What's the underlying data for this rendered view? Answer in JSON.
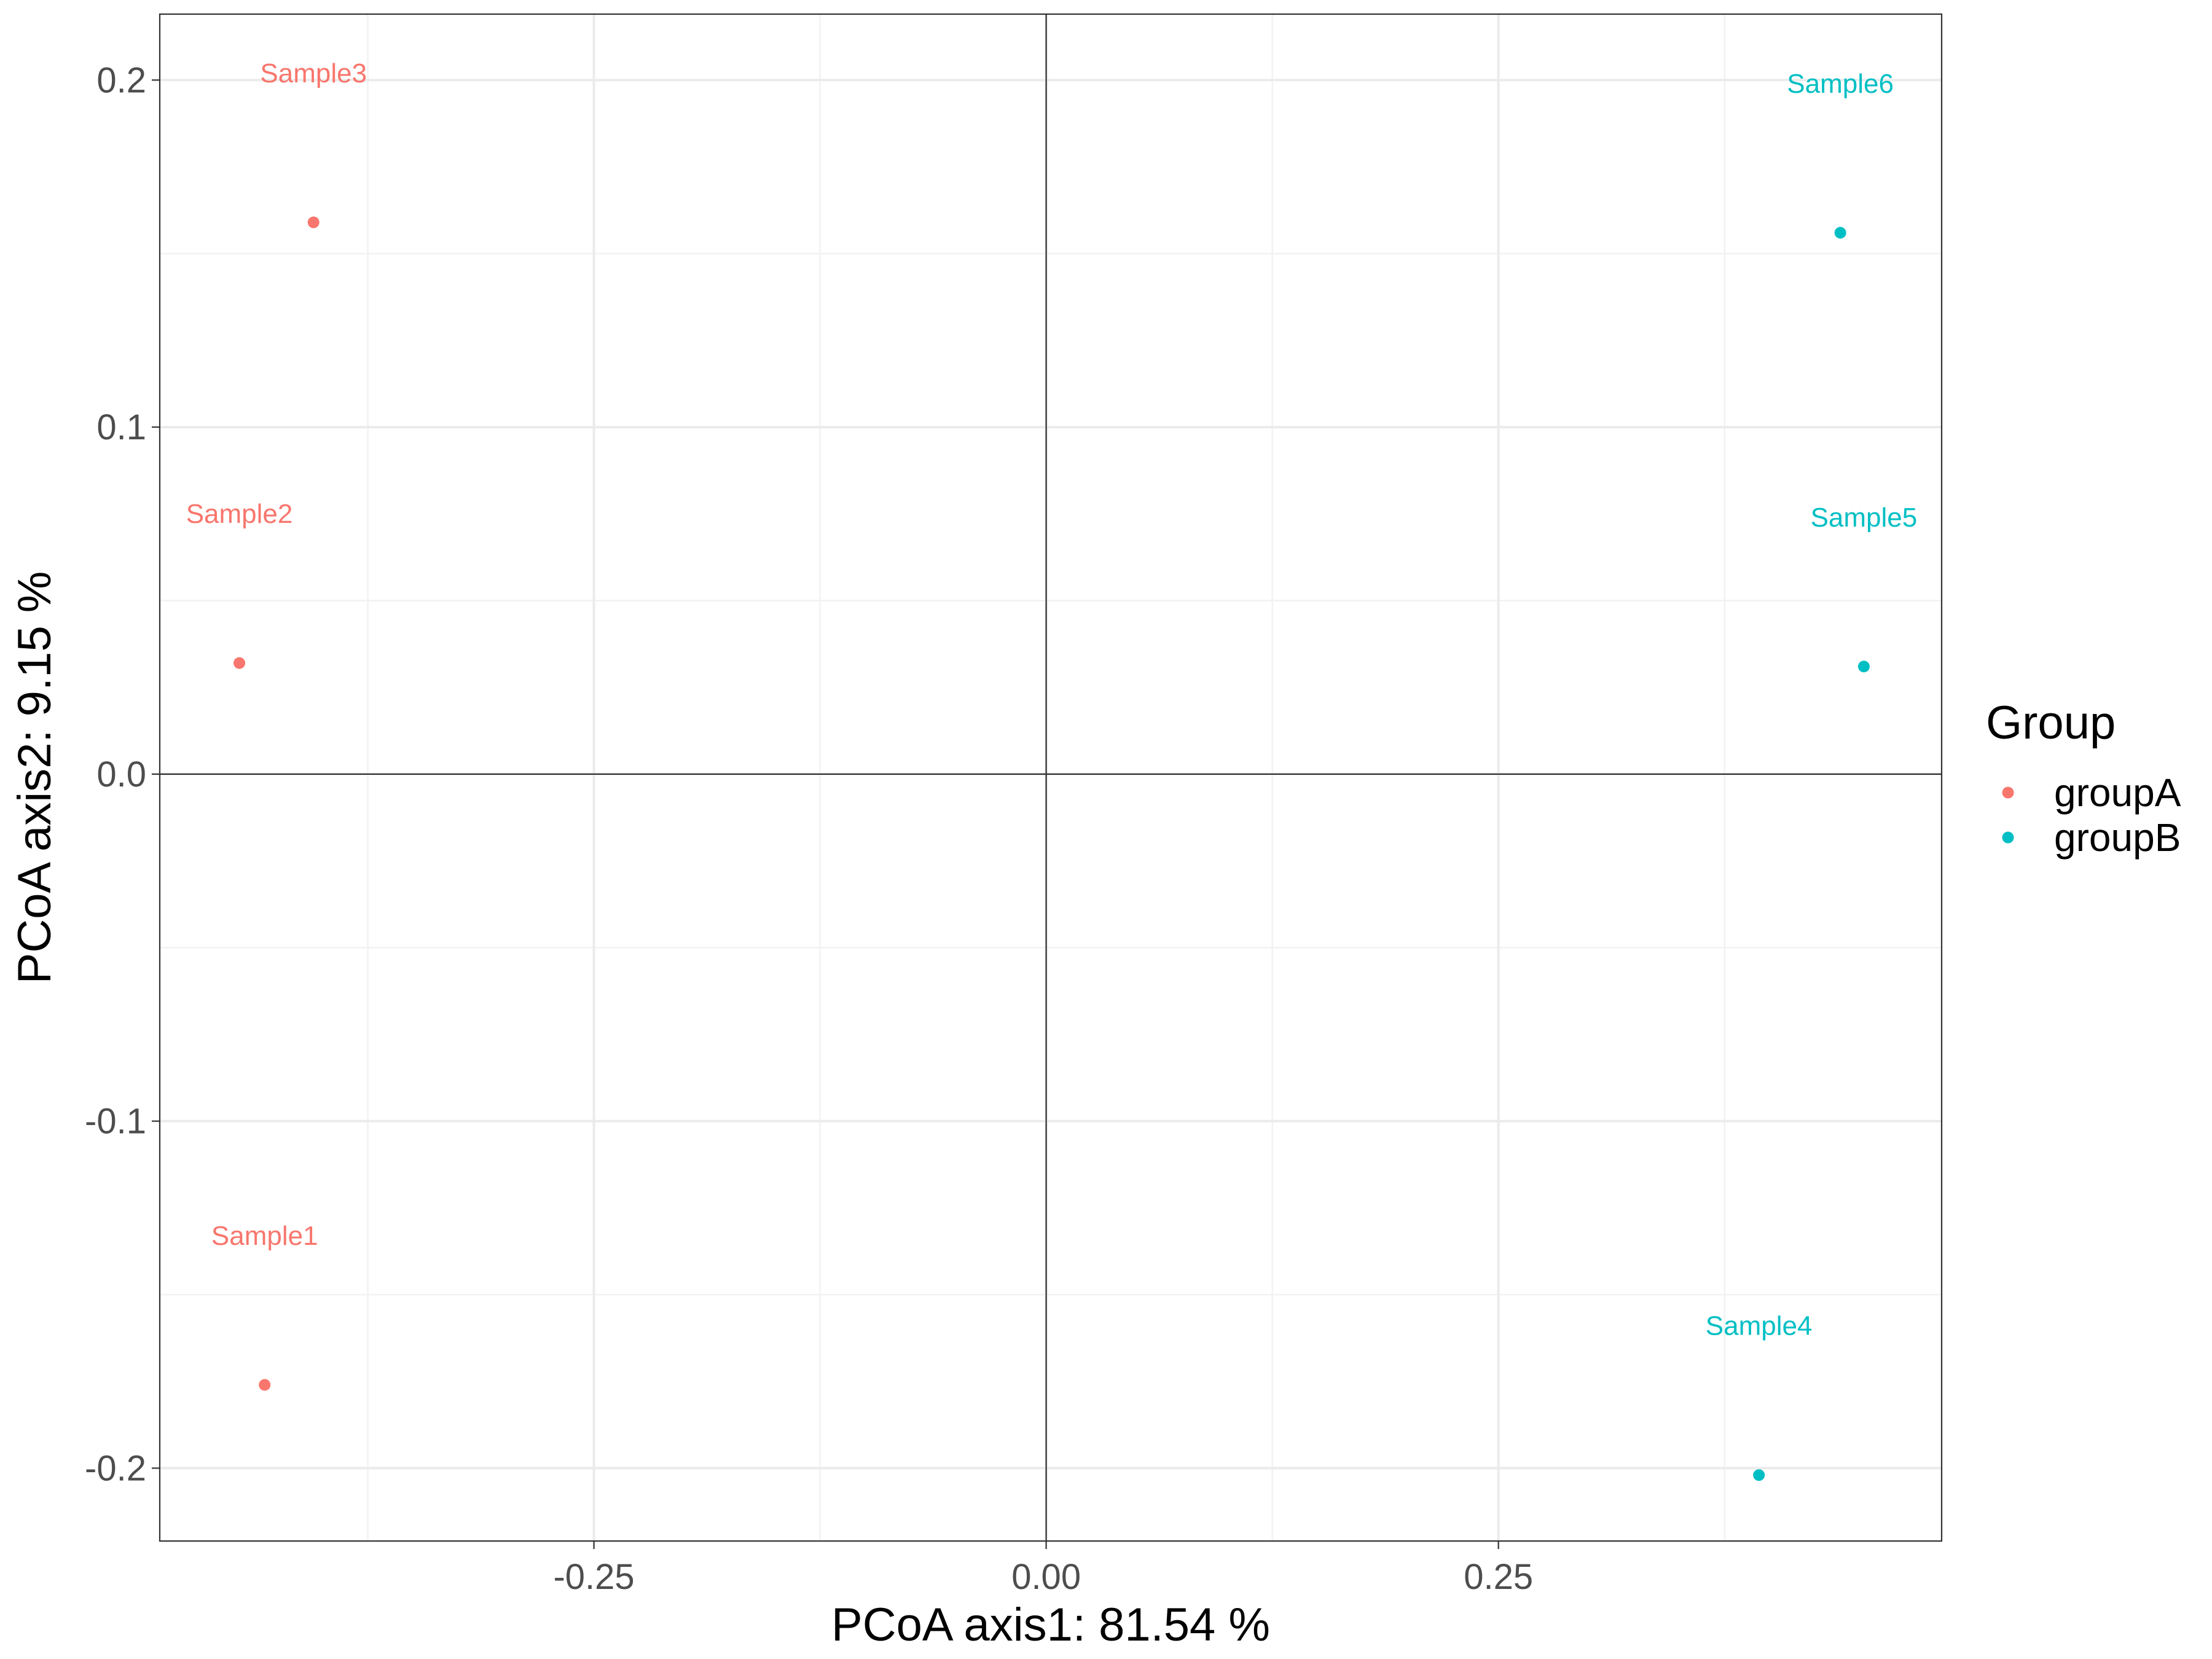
{
  "chart_data": {
    "type": "scatter",
    "xlabel": "PCoA axis1:  81.54 %",
    "ylabel": "PCoA axis2:  9.15 %",
    "xlim": [
      -0.49,
      0.495
    ],
    "ylim": [
      -0.221,
      0.219
    ],
    "x_ticks": [
      {
        "value": -0.25,
        "label": "-0.25"
      },
      {
        "value": 0.0,
        "label": "0.00"
      },
      {
        "value": 0.25,
        "label": "0.25"
      }
    ],
    "y_ticks": [
      {
        "value": 0.2,
        "label": "0.2"
      },
      {
        "value": 0.1,
        "label": "0.1"
      },
      {
        "value": 0.0,
        "label": "0.0"
      },
      {
        "value": -0.1,
        "label": "-0.1"
      },
      {
        "value": -0.2,
        "label": "-0.2"
      }
    ],
    "x_minor": [
      -0.375,
      -0.125,
      0.125,
      0.375
    ],
    "y_minor": [
      0.15,
      0.05,
      -0.05,
      -0.15
    ],
    "reference_lines": {
      "x": 0,
      "y": 0
    },
    "grid": true,
    "legend": {
      "title": "Group",
      "position": "right"
    },
    "series": [
      {
        "name": "groupA",
        "color": "#F8766D",
        "points": [
          {
            "label": "Sample1",
            "x": -0.432,
            "y": -0.176
          },
          {
            "label": "Sample2",
            "x": -0.446,
            "y": 0.032
          },
          {
            "label": "Sample3",
            "x": -0.405,
            "y": 0.159
          }
        ]
      },
      {
        "name": "groupB",
        "color": "#00BFC4",
        "points": [
          {
            "label": "Sample4",
            "x": 0.394,
            "y": -0.202
          },
          {
            "label": "Sample5",
            "x": 0.452,
            "y": 0.031
          },
          {
            "label": "Sample6",
            "x": 0.439,
            "y": 0.156
          }
        ]
      }
    ]
  }
}
